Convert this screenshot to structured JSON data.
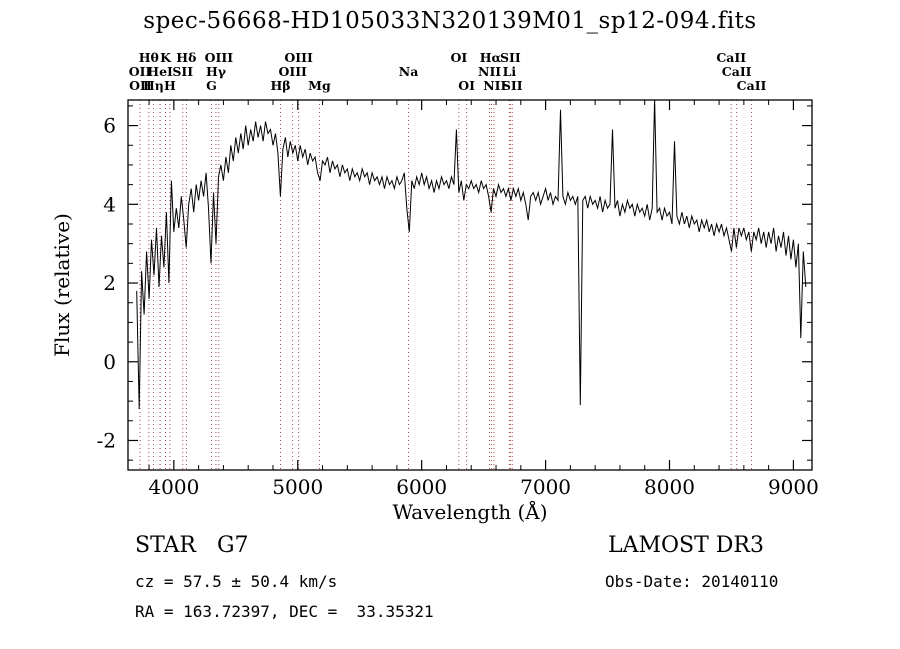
{
  "title": "spec-56668-HD105033N320139M01_sp12-094.fits",
  "footer": {
    "class_label": "STAR   G7",
    "survey": "LAMOST DR3",
    "cz": "cz = 57.5 ± 50.4 km/s",
    "obs_date": "Obs-Date: 20140110",
    "ra_dec": "RA = 163.72397, DEC =  33.35321"
  },
  "colors": {
    "background": "#ffffff",
    "spectrum": "#000000",
    "line_marker": "#a84848",
    "axis": "#000000"
  },
  "chart_data": {
    "type": "line",
    "title": "spec-56668-HD105033N320139M01_sp12-094.fits",
    "xlabel": "Wavelength (Å)",
    "ylabel": "Flux (relative)",
    "xlim": [
      3630,
      9150
    ],
    "ylim": [
      -2.75,
      6.65
    ],
    "x_ticks": [
      4000,
      5000,
      6000,
      7000,
      8000,
      9000
    ],
    "y_ticks": [
      -2,
      0,
      2,
      4,
      6
    ],
    "x_minor_step": 200,
    "y_minor_step": 0.5,
    "x_start": 3700,
    "x_step": 20,
    "flux": [
      1.8,
      -1.2,
      2.3,
      1.2,
      2.8,
      1.6,
      3.1,
      2.2,
      3.4,
      1.9,
      3.2,
      2.4,
      3.8,
      2.0,
      4.6,
      3.3,
      3.9,
      3.4,
      4.2,
      3.6,
      2.9,
      4.0,
      4.4,
      3.8,
      4.5,
      4.1,
      4.6,
      4.2,
      4.8,
      3.9,
      2.5,
      4.3,
      3.0,
      4.7,
      5.0,
      4.6,
      5.2,
      4.8,
      5.5,
      5.1,
      5.7,
      5.3,
      5.8,
      5.4,
      6.0,
      5.5,
      5.9,
      5.6,
      6.1,
      5.7,
      6.0,
      5.6,
      6.1,
      5.8,
      5.9,
      5.5,
      5.8,
      5.3,
      4.2,
      5.4,
      5.7,
      5.2,
      5.6,
      5.3,
      5.5,
      5.1,
      5.5,
      5.2,
      5.4,
      5.0,
      5.3,
      5.1,
      5.2,
      4.8,
      4.6,
      5.1,
      5.0,
      5.2,
      4.8,
      5.1,
      4.9,
      5.0,
      4.7,
      5.0,
      4.8,
      4.9,
      4.6,
      4.9,
      4.7,
      4.8,
      4.6,
      4.9,
      4.7,
      4.8,
      4.5,
      4.8,
      4.6,
      4.7,
      4.5,
      4.7,
      4.4,
      4.7,
      4.5,
      4.6,
      4.4,
      4.7,
      4.5,
      4.6,
      4.8,
      3.9,
      3.3,
      4.6,
      4.4,
      4.7,
      4.5,
      4.8,
      4.5,
      4.7,
      4.4,
      4.6,
      4.3,
      4.6,
      4.4,
      4.7,
      4.5,
      4.6,
      4.4,
      4.7,
      4.5,
      5.9,
      4.3,
      4.6,
      4.1,
      4.5,
      4.4,
      4.6,
      4.4,
      4.5,
      4.3,
      4.6,
      4.4,
      4.5,
      4.2,
      3.8,
      4.4,
      4.2,
      4.5,
      4.3,
      4.4,
      4.2,
      4.4,
      4.1,
      4.4,
      4.2,
      4.4,
      4.1,
      4.3,
      4.0,
      3.6,
      4.2,
      4.3,
      4.1,
      4.3,
      4.0,
      4.2,
      4.4,
      4.1,
      4.3,
      4.0,
      4.2,
      4.1,
      6.4,
      4.2,
      4.0,
      4.3,
      4.1,
      4.2,
      4.0,
      4.2,
      -1.1,
      4.1,
      4.2,
      3.9,
      4.2,
      4.0,
      4.1,
      3.9,
      4.2,
      3.8,
      4.1,
      3.9,
      4.0,
      5.9,
      3.9,
      4.1,
      3.7,
      4.0,
      3.8,
      4.1,
      3.9,
      4.0,
      3.7,
      4.0,
      3.8,
      3.9,
      3.7,
      4.0,
      3.6,
      3.9,
      6.7,
      3.8,
      3.9,
      3.6,
      3.9,
      3.7,
      3.8,
      3.5,
      5.6,
      3.7,
      3.5,
      3.8,
      3.5,
      3.7,
      3.4,
      3.7,
      3.5,
      3.6,
      3.3,
      3.6,
      3.4,
      3.6,
      3.3,
      3.5,
      3.2,
      3.5,
      3.3,
      3.5,
      3.2,
      3.4,
      3.1,
      2.8,
      3.4,
      2.9,
      3.4,
      3.2,
      3.4,
      3.1,
      3.3,
      2.8,
      3.3,
      3.1,
      3.4,
      3.0,
      3.3,
      2.9,
      3.3,
      3.0,
      3.4,
      2.8,
      3.2,
      2.9,
      3.3,
      2.7,
      3.2,
      2.6,
      3.1,
      2.4,
      3.0,
      0.6,
      2.8,
      1.9
    ],
    "spectral_lines": {
      "markers": [
        3727,
        3798,
        3835,
        3889,
        3933,
        3968,
        4072,
        4101,
        4304,
        4340,
        4363,
        4861,
        4959,
        5007,
        5175,
        5894,
        6300,
        6363,
        6548,
        6563,
        6583,
        6708,
        6716,
        6731,
        8498,
        8542,
        8662
      ],
      "label_rows": [
        {
          "labels": [
            {
              "text": "Hθ",
              "wl": 3798
            },
            {
              "text": "K",
              "wl": 3933
            },
            {
              "text": "Hδ",
              "wl": 4101
            },
            {
              "text": "OIII",
              "wl": 4363
            },
            {
              "text": "OIII",
              "wl": 5007
            },
            {
              "text": "OI",
              "wl": 6300
            },
            {
              "text": "Hα",
              "wl": 6555
            },
            {
              "text": "SII",
              "wl": 6716
            },
            {
              "text": "CaII",
              "wl": 8498
            }
          ]
        },
        {
          "labels": [
            {
              "text": "OII",
              "wl": 3727
            },
            {
              "text": "HeI",
              "wl": 3889
            },
            {
              "text": "SII",
              "wl": 4072
            },
            {
              "text": "Hγ",
              "wl": 4340
            },
            {
              "text": "OIII",
              "wl": 4959
            },
            {
              "text": "Na",
              "wl": 5894
            },
            {
              "text": "NII",
              "wl": 6548
            },
            {
              "text": "Li",
              "wl": 6708
            },
            {
              "text": "CaII",
              "wl": 8542
            }
          ]
        },
        {
          "labels": [
            {
              "text": "OII",
              "wl": 3730
            },
            {
              "text": "Hη",
              "wl": 3835
            },
            {
              "text": "H",
              "wl": 3968
            },
            {
              "text": "G",
              "wl": 4304
            },
            {
              "text": "Hβ",
              "wl": 4861
            },
            {
              "text": "Mg",
              "wl": 5175
            },
            {
              "text": "OI",
              "wl": 6363
            },
            {
              "text": "NII",
              "wl": 6590
            },
            {
              "text": "SII",
              "wl": 6731
            },
            {
              "text": "CaII",
              "wl": 8662
            }
          ]
        }
      ]
    },
    "legend": "off",
    "grid": "off"
  }
}
